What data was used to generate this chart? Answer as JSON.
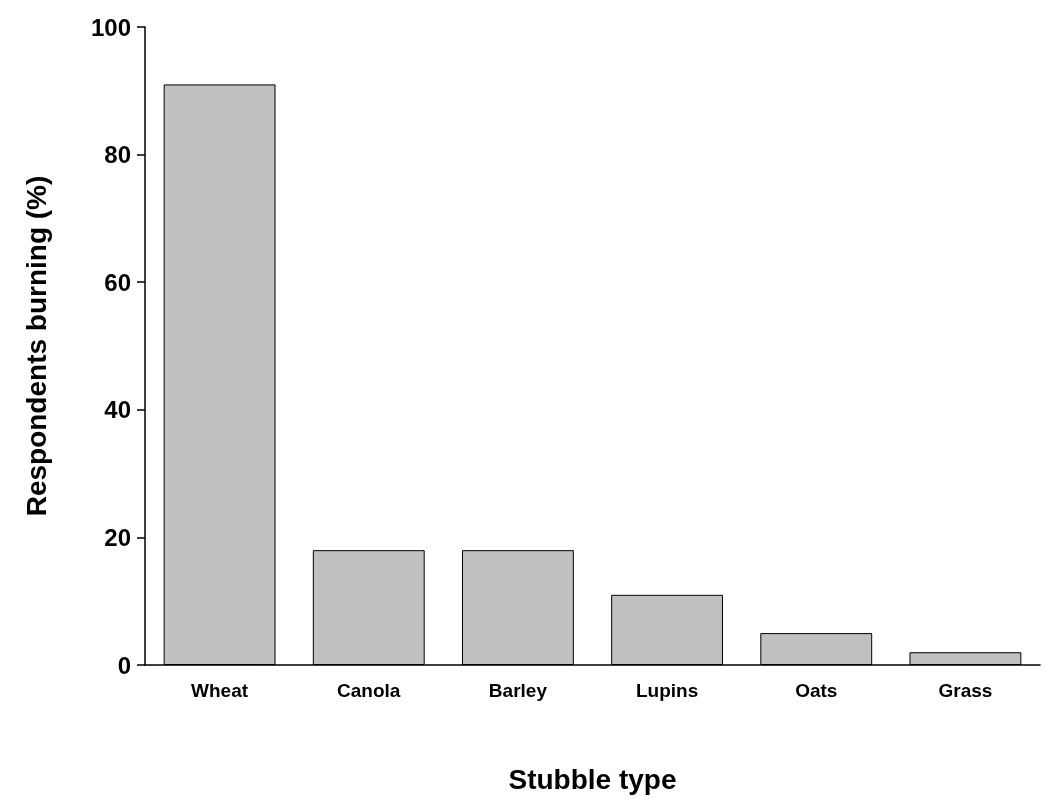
{
  "chart_data": {
    "type": "bar",
    "xlabel": "Stubble type",
    "ylabel": "Respondents burning (%)",
    "categories": [
      "Wheat",
      "Canola",
      "Barley",
      "Lupins",
      "Oats",
      "Grass"
    ],
    "values": [
      91,
      18,
      18,
      11,
      5,
      2
    ],
    "color": "#c0c0c0",
    "ylim": [
      0,
      100
    ],
    "yticks": [
      0,
      20,
      40,
      60,
      80,
      100
    ],
    "grid": false
  }
}
